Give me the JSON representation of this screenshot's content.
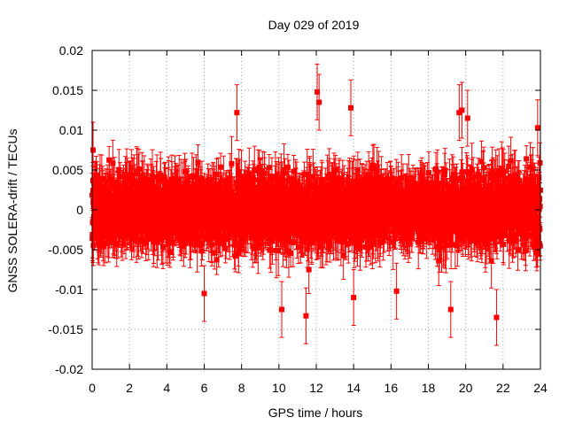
{
  "chart_data": {
    "type": "scatter",
    "title": "Day 029 of 2019",
    "xlabel": "GPS time / hours",
    "ylabel": "GNSS SOLERA-drift / TECUs",
    "xlim": [
      0,
      24
    ],
    "ylim": [
      -0.02,
      0.02
    ],
    "grid": true,
    "x_ticks": [
      0,
      2,
      4,
      6,
      8,
      10,
      12,
      14,
      16,
      18,
      20,
      22,
      24
    ],
    "x_tick_labels": [
      "0",
      "2",
      "4",
      "6",
      "8",
      "10",
      "12",
      "14",
      "16",
      "18",
      "20",
      "22",
      "24"
    ],
    "y_ticks": [
      -0.02,
      -0.015,
      -0.01,
      -0.005,
      0,
      0.005,
      0.01,
      0.015,
      0.02
    ],
    "y_tick_labels": [
      "-0.02",
      "-0.015",
      "-0.01",
      "-0.005",
      "0",
      "0.005",
      "0.01",
      "0.015",
      "0.02"
    ],
    "series": [
      {
        "name": "SOLERA drift",
        "color": "#ff0000",
        "marker": "square",
        "error_bars": true,
        "x_range": [
          0,
          24
        ],
        "n_points": 2880,
        "approx_mean": 0.0,
        "approx_spread": 0.004,
        "typical_error": 0.0025,
        "notable_points": [
          {
            "x": 0.05,
            "y": 0.0075
          },
          {
            "x": 7.75,
            "y": 0.0122
          },
          {
            "x": 10.15,
            "y": -0.0125
          },
          {
            "x": 11.45,
            "y": -0.0133
          },
          {
            "x": 12.05,
            "y": 0.0148
          },
          {
            "x": 12.15,
            "y": 0.0135
          },
          {
            "x": 13.85,
            "y": 0.0128
          },
          {
            "x": 14.0,
            "y": -0.011
          },
          {
            "x": 19.2,
            "y": -0.0125
          },
          {
            "x": 19.65,
            "y": 0.0122
          },
          {
            "x": 19.8,
            "y": 0.0125
          },
          {
            "x": 21.65,
            "y": -0.0135
          },
          {
            "x": 20.1,
            "y": 0.0115
          },
          {
            "x": 23.85,
            "y": 0.0103
          },
          {
            "x": 6.0,
            "y": -0.0105
          },
          {
            "x": 16.3,
            "y": -0.0102
          }
        ]
      }
    ]
  }
}
